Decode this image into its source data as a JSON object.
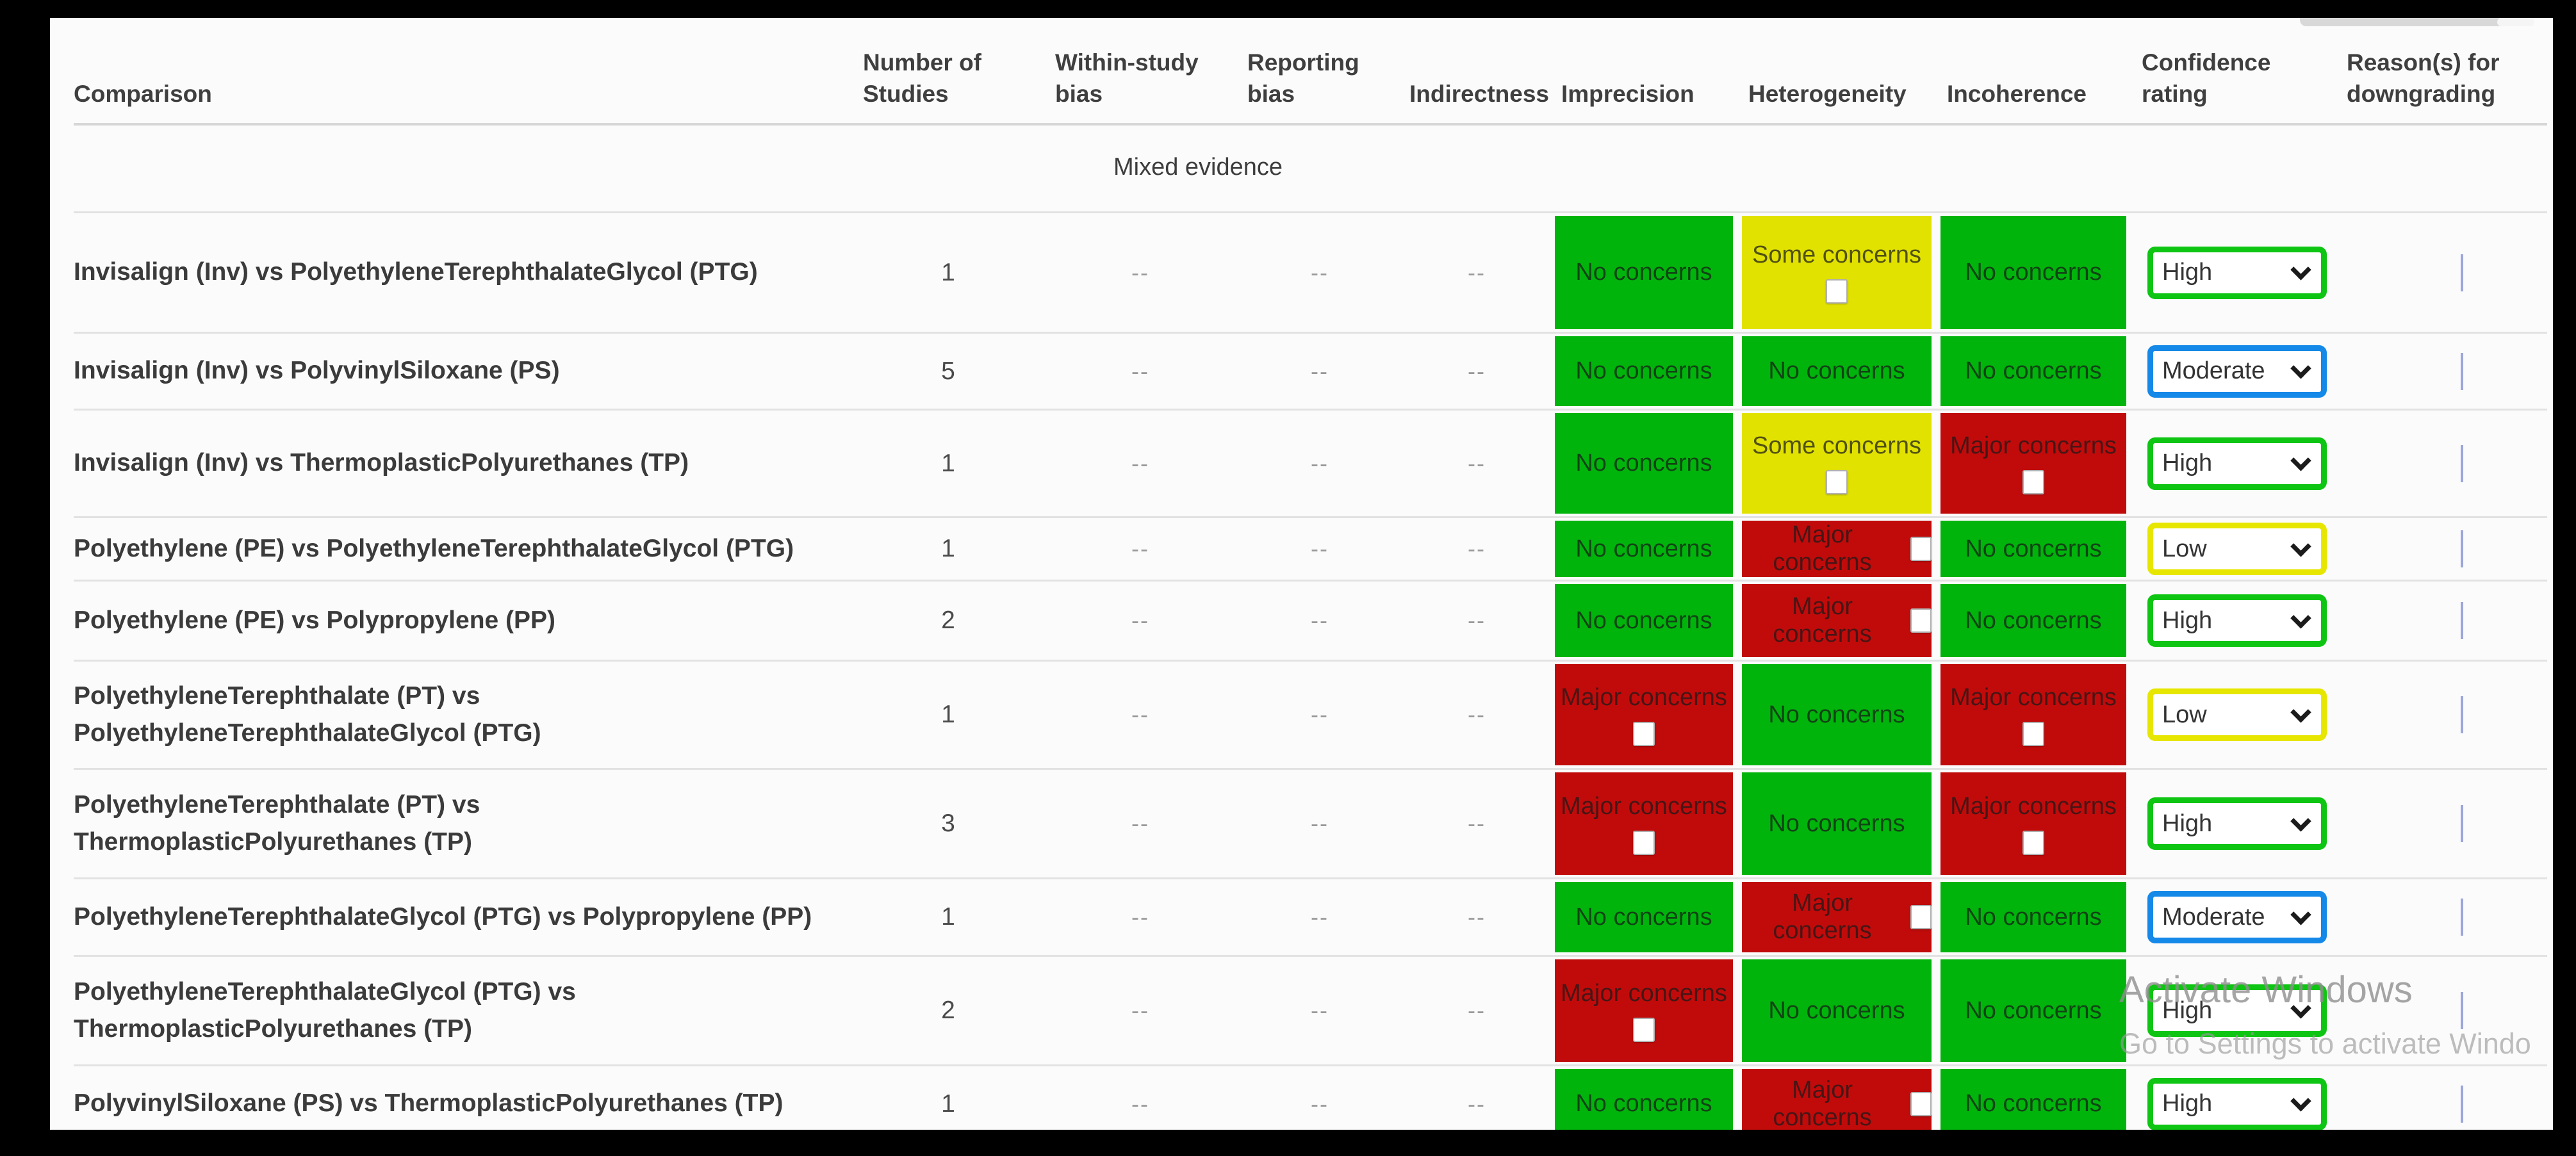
{
  "table": {
    "columns": [
      "Comparison",
      "Number of Studies",
      "Within-study bias",
      "Reporting bias",
      "Indirectness",
      "Imprecision",
      "Heterogeneity",
      "Incoherence",
      "Confidence rating",
      "Reason(s) for downgrading"
    ],
    "section_label": "Mixed evidence",
    "concern_labels": {
      "none": "No concerns",
      "some": "Some concerns",
      "major": "Major concerns"
    },
    "rows": [
      {
        "comparison": "Invisalign (Inv) vs PolyethyleneTerephthalateGlycol (PTG)",
        "studies": "1",
        "within_study_bias": "--",
        "reporting_bias": "--",
        "indirectness": "--",
        "imprecision": {
          "level": "none",
          "checkbox": null
        },
        "heterogeneity": {
          "level": "some",
          "checkbox": "below"
        },
        "incoherence": {
          "level": "none",
          "checkbox": null
        },
        "confidence": "High"
      },
      {
        "comparison": "Invisalign (Inv) vs PolyvinylSiloxane (PS)",
        "studies": "5",
        "within_study_bias": "--",
        "reporting_bias": "--",
        "indirectness": "--",
        "imprecision": {
          "level": "none",
          "checkbox": null
        },
        "heterogeneity": {
          "level": "none",
          "checkbox": null
        },
        "incoherence": {
          "level": "none",
          "checkbox": null
        },
        "confidence": "Moderate"
      },
      {
        "comparison": "Invisalign (Inv) vs ThermoplasticPolyurethanes (TP)",
        "studies": "1",
        "within_study_bias": "--",
        "reporting_bias": "--",
        "indirectness": "--",
        "imprecision": {
          "level": "none",
          "checkbox": null
        },
        "heterogeneity": {
          "level": "some",
          "checkbox": "below"
        },
        "incoherence": {
          "level": "major",
          "checkbox": "below"
        },
        "confidence": "High"
      },
      {
        "comparison": "Polyethylene (PE) vs PolyethyleneTerephthalateGlycol (PTG)",
        "studies": "1",
        "within_study_bias": "--",
        "reporting_bias": "--",
        "indirectness": "--",
        "imprecision": {
          "level": "none",
          "checkbox": null
        },
        "heterogeneity": {
          "level": "major",
          "checkbox": "inline"
        },
        "incoherence": {
          "level": "none",
          "checkbox": null
        },
        "confidence": "Low"
      },
      {
        "comparison": "Polyethylene (PE) vs Polypropylene (PP)",
        "studies": "2",
        "within_study_bias": "--",
        "reporting_bias": "--",
        "indirectness": "--",
        "imprecision": {
          "level": "none",
          "checkbox": null
        },
        "heterogeneity": {
          "level": "major",
          "checkbox": "inline"
        },
        "incoherence": {
          "level": "none",
          "checkbox": null
        },
        "confidence": "High"
      },
      {
        "comparison": "PolyethyleneTerephthalate (PT) vs PolyethyleneTerephthalateGlycol (PTG)",
        "studies": "1",
        "within_study_bias": "--",
        "reporting_bias": "--",
        "indirectness": "--",
        "imprecision": {
          "level": "major",
          "checkbox": "below"
        },
        "heterogeneity": {
          "level": "none",
          "checkbox": null
        },
        "incoherence": {
          "level": "major",
          "checkbox": "below"
        },
        "confidence": "Low"
      },
      {
        "comparison": "PolyethyleneTerephthalate (PT) vs ThermoplasticPolyurethanes (TP)",
        "studies": "3",
        "within_study_bias": "--",
        "reporting_bias": "--",
        "indirectness": "--",
        "imprecision": {
          "level": "major",
          "checkbox": "below"
        },
        "heterogeneity": {
          "level": "none",
          "checkbox": null
        },
        "incoherence": {
          "level": "major",
          "checkbox": "below"
        },
        "confidence": "High"
      },
      {
        "comparison": "PolyethyleneTerephthalateGlycol (PTG) vs Polypropylene (PP)",
        "studies": "1",
        "within_study_bias": "--",
        "reporting_bias": "--",
        "indirectness": "--",
        "imprecision": {
          "level": "none",
          "checkbox": null
        },
        "heterogeneity": {
          "level": "major",
          "checkbox": "inline"
        },
        "incoherence": {
          "level": "none",
          "checkbox": null
        },
        "confidence": "Moderate"
      },
      {
        "comparison": "PolyethyleneTerephthalateGlycol (PTG) vs ThermoplasticPolyurethanes (TP)",
        "studies": "2",
        "within_study_bias": "--",
        "reporting_bias": "--",
        "indirectness": "--",
        "imprecision": {
          "level": "major",
          "checkbox": "below"
        },
        "heterogeneity": {
          "level": "none",
          "checkbox": null
        },
        "incoherence": {
          "level": "none",
          "checkbox": null
        },
        "confidence": "High"
      },
      {
        "comparison": "PolyvinylSiloxane (PS) vs ThermoplasticPolyurethanes (TP)",
        "studies": "1",
        "within_study_bias": "--",
        "reporting_bias": "--",
        "indirectness": "--",
        "imprecision": {
          "level": "none",
          "checkbox": null
        },
        "heterogeneity": {
          "level": "major",
          "checkbox": "inline"
        },
        "incoherence": {
          "level": "none",
          "checkbox": null
        },
        "confidence": "High"
      }
    ]
  },
  "colors": {
    "cell": {
      "none": "#00b40c",
      "some": "#e2e200",
      "major": "#c10b0b"
    },
    "select": {
      "High": "#0fc513",
      "Moderate": "#1589e8",
      "Low": "#e6e600"
    }
  },
  "watermark": {
    "line1": "Activate Windows",
    "line2": "Go to Settings to activate Windo"
  }
}
